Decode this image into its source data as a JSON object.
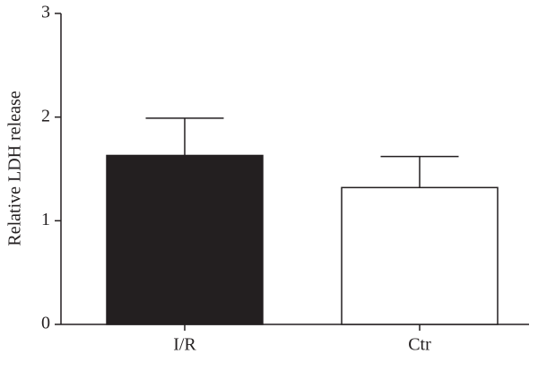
{
  "chart_data": {
    "type": "bar",
    "y_label": "Relative LDH release",
    "categories": [
      "I/R",
      "Ctr"
    ],
    "values": [
      1.63,
      1.32
    ],
    "errors": [
      0.36,
      0.3
    ],
    "colors": [
      "#231f20",
      "#ffffff"
    ],
    "ylim": [
      0,
      3
    ],
    "yticks": [
      0,
      1,
      2,
      3
    ],
    "grid": false
  }
}
